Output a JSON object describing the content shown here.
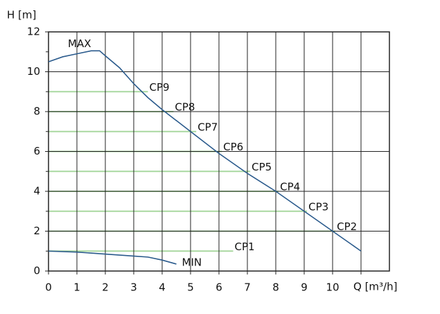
{
  "chart_data": {
    "type": "line",
    "ylabel": "H [m]",
    "xlabel": "Q [m³/h]",
    "xlim": [
      0,
      12
    ],
    "ylim": [
      0,
      12
    ],
    "xticks": [
      0,
      1,
      2,
      3,
      4,
      5,
      6,
      7,
      8,
      9,
      10
    ],
    "xminor": [
      11
    ],
    "yticks": [
      0,
      2,
      4,
      6,
      8,
      10,
      12
    ],
    "yminor": [
      1,
      3,
      5,
      7,
      9,
      11
    ],
    "grid": true,
    "series": [
      {
        "name": "MAX",
        "color": "#2a5a8c",
        "x": [
          0,
          0.5,
          1,
          1.5,
          1.8,
          2,
          2.5,
          3,
          3.5,
          4,
          5,
          6,
          7,
          8,
          9,
          10,
          11
        ],
        "values": [
          10.5,
          10.75,
          10.9,
          11.05,
          11.05,
          10.8,
          10.2,
          9.4,
          8.7,
          8.1,
          7,
          5.9,
          4.9,
          4,
          3,
          2,
          1
        ]
      },
      {
        "name": "MIN",
        "color": "#2a5a8c",
        "x": [
          0,
          1,
          2,
          3,
          3.5,
          4,
          4.5
        ],
        "values": [
          1,
          0.95,
          0.85,
          0.75,
          0.7,
          0.55,
          0.35
        ]
      },
      {
        "name": "CP9",
        "color": "#a9d8a0",
        "x": [
          0,
          3.5
        ],
        "values": [
          9,
          9
        ]
      },
      {
        "name": "CP8",
        "color": "#a9d8a0",
        "x": [
          0,
          4.4
        ],
        "values": [
          8,
          8
        ]
      },
      {
        "name": "CP7",
        "color": "#a9d8a0",
        "x": [
          0,
          5.2
        ],
        "values": [
          7,
          7
        ]
      },
      {
        "name": "CP6",
        "color": "#a9d8a0",
        "x": [
          0,
          6.1
        ],
        "values": [
          6,
          6
        ]
      },
      {
        "name": "CP5",
        "color": "#a9d8a0",
        "x": [
          0,
          7.1
        ],
        "values": [
          5,
          5
        ]
      },
      {
        "name": "CP4",
        "color": "#a9d8a0",
        "x": [
          0,
          8.1
        ],
        "values": [
          4,
          4
        ]
      },
      {
        "name": "CP3",
        "color": "#a9d8a0",
        "x": [
          0,
          9.1
        ],
        "values": [
          3,
          3
        ]
      },
      {
        "name": "CP2",
        "color": "#a9d8a0",
        "x": [
          0,
          10.1
        ],
        "values": [
          2,
          2
        ]
      },
      {
        "name": "CP1",
        "color": "#a9d8a0",
        "x": [
          0,
          6.5
        ],
        "values": [
          1,
          1
        ]
      }
    ]
  }
}
